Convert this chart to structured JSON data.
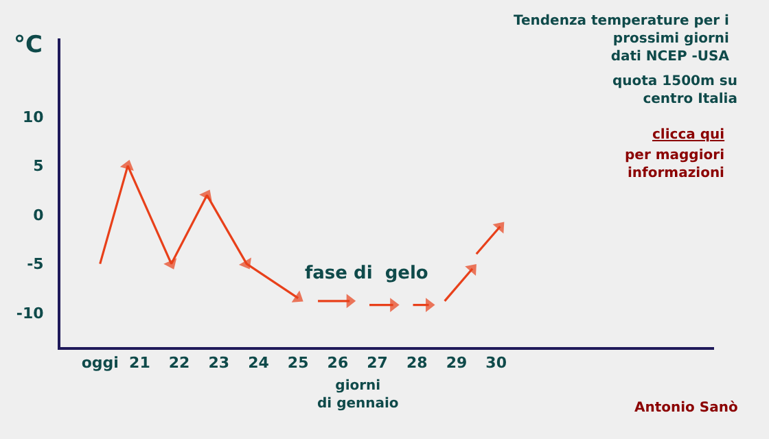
{
  "chart_data": {
    "type": "line",
    "title": "Tendenza temperature per i\nprossimi giorni\ndati NCEP -USA",
    "subtitle": "quota 1500m su\ncentro Italia",
    "ylabel": "°C",
    "xlabel": "giorni\ndi gennaio",
    "annotations": [
      "clicca qui",
      "per maggiori\ninformazioni",
      "fase di  gelo",
      "Antonio Sanò"
    ],
    "x": [
      20,
      20.7,
      21.8,
      22.7,
      23.7,
      25,
      null,
      25.5,
      26.3,
      null,
      26.8,
      27.4,
      null,
      27.9,
      28.3,
      null,
      28.7,
      29.4,
      null,
      29.5,
      30.1
    ],
    "series": [
      {
        "color": "#e8401a",
        "values": [
          -5,
          5,
          -5,
          2,
          -5,
          -8.5,
          null,
          -8.8,
          -8.8,
          null,
          -9.2,
          -9.2,
          null,
          -9.2,
          -9.2,
          null,
          -8.8,
          -5.5,
          null,
          -4,
          -1.2
        ]
      }
    ],
    "xlim": [
      19,
      35.5
    ],
    "xticks": [
      {
        "value": 20,
        "label": "oggi"
      },
      21,
      22,
      23,
      24,
      25,
      26,
      27,
      28,
      29,
      30
    ],
    "ylim": [
      -13.5,
      18
    ],
    "yticks": [
      -10,
      -5,
      0,
      5,
      10
    ],
    "grid": false,
    "legend": false,
    "marker": "triangle",
    "line_style": "solid"
  }
}
